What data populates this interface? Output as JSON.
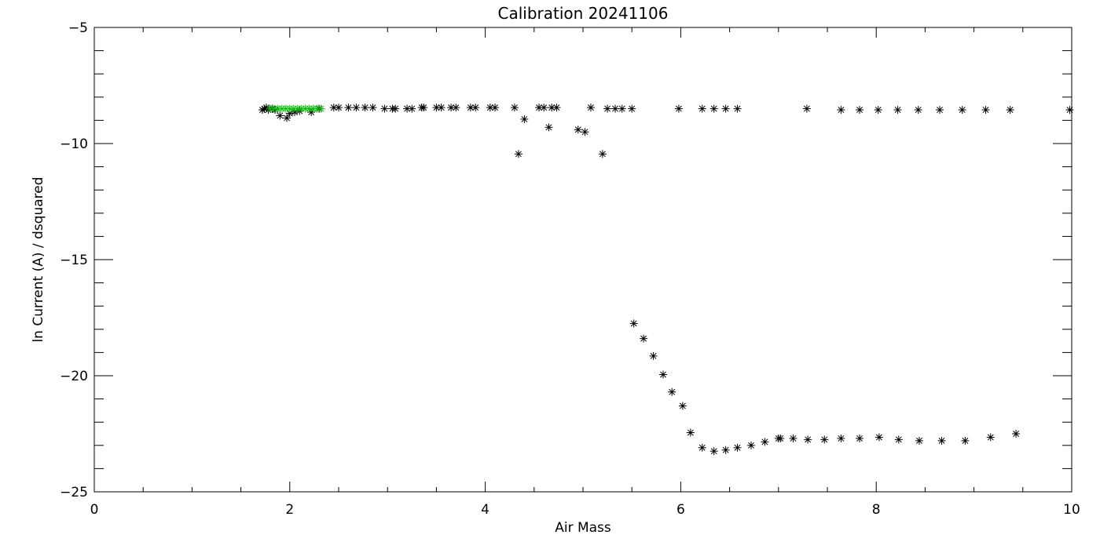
{
  "chart_data": {
    "type": "scatter",
    "title": "Calibration 20241106",
    "xlabel": "Air Mass",
    "ylabel": "ln Current (A) / dsquared",
    "xlim": [
      0,
      10
    ],
    "ylim": [
      -25,
      -5
    ],
    "x_ticks": [
      0,
      2,
      4,
      6,
      8,
      10
    ],
    "y_ticks": [
      -25,
      -20,
      -15,
      -10,
      -5
    ],
    "grid": false,
    "marker": "asterisk",
    "series": [
      {
        "color": "#000000",
        "points": [
          [
            1.72,
            -8.55
          ],
          [
            1.74,
            -8.5
          ],
          [
            1.76,
            -8.45
          ],
          [
            1.78,
            -8.55
          ],
          [
            1.8,
            -8.5
          ],
          [
            1.82,
            -8.5
          ],
          [
            1.85,
            -8.55
          ],
          [
            1.9,
            -8.8
          ],
          [
            1.97,
            -8.9
          ],
          [
            2.0,
            -8.7
          ],
          [
            2.05,
            -8.65
          ],
          [
            2.1,
            -8.6
          ],
          [
            2.22,
            -8.65
          ],
          [
            2.3,
            -8.5
          ],
          [
            2.45,
            -8.45
          ],
          [
            2.5,
            -8.45
          ],
          [
            2.6,
            -8.45
          ],
          [
            2.68,
            -8.45
          ],
          [
            2.77,
            -8.45
          ],
          [
            2.85,
            -8.45
          ],
          [
            2.97,
            -8.5
          ],
          [
            3.05,
            -8.5
          ],
          [
            3.08,
            -8.5
          ],
          [
            3.2,
            -8.5
          ],
          [
            3.25,
            -8.5
          ],
          [
            3.35,
            -8.45
          ],
          [
            3.37,
            -8.45
          ],
          [
            3.5,
            -8.45
          ],
          [
            3.55,
            -8.45
          ],
          [
            3.65,
            -8.45
          ],
          [
            3.7,
            -8.45
          ],
          [
            3.85,
            -8.45
          ],
          [
            3.9,
            -8.45
          ],
          [
            4.05,
            -8.45
          ],
          [
            4.1,
            -8.45
          ],
          [
            4.3,
            -8.45
          ],
          [
            4.34,
            -10.45
          ],
          [
            4.4,
            -8.95
          ],
          [
            4.55,
            -8.45
          ],
          [
            4.6,
            -8.45
          ],
          [
            4.65,
            -9.3
          ],
          [
            4.68,
            -8.45
          ],
          [
            4.73,
            -8.45
          ],
          [
            4.95,
            -9.4
          ],
          [
            5.02,
            -9.5
          ],
          [
            5.08,
            -8.45
          ],
          [
            5.2,
            -10.45
          ],
          [
            5.25,
            -8.5
          ],
          [
            5.33,
            -8.5
          ],
          [
            5.4,
            -8.5
          ],
          [
            5.5,
            -8.5
          ],
          [
            5.52,
            -17.75
          ],
          [
            5.62,
            -18.4
          ],
          [
            5.72,
            -19.15
          ],
          [
            5.82,
            -19.95
          ],
          [
            5.91,
            -20.7
          ],
          [
            6.02,
            -21.3
          ],
          [
            5.98,
            -8.5
          ],
          [
            6.1,
            -22.45
          ],
          [
            6.22,
            -23.1
          ],
          [
            6.22,
            -8.5
          ],
          [
            6.34,
            -8.5
          ],
          [
            6.34,
            -23.25
          ],
          [
            6.46,
            -8.5
          ],
          [
            6.46,
            -23.2
          ],
          [
            6.58,
            -8.5
          ],
          [
            6.58,
            -23.1
          ],
          [
            6.72,
            -23.0
          ],
          [
            6.86,
            -22.85
          ],
          [
            7.0,
            -22.7
          ],
          [
            7.02,
            -22.7
          ],
          [
            7.15,
            -22.7
          ],
          [
            7.29,
            -8.5
          ],
          [
            7.3,
            -22.75
          ],
          [
            7.47,
            -22.75
          ],
          [
            7.64,
            -8.55
          ],
          [
            7.64,
            -22.7
          ],
          [
            7.83,
            -8.55
          ],
          [
            7.83,
            -22.7
          ],
          [
            8.02,
            -8.55
          ],
          [
            8.03,
            -22.65
          ],
          [
            8.22,
            -8.55
          ],
          [
            8.23,
            -22.75
          ],
          [
            8.43,
            -8.55
          ],
          [
            8.44,
            -22.8
          ],
          [
            8.65,
            -8.55
          ],
          [
            8.67,
            -22.8
          ],
          [
            8.88,
            -8.55
          ],
          [
            8.91,
            -22.8
          ],
          [
            9.12,
            -8.55
          ],
          [
            9.17,
            -22.65
          ],
          [
            9.37,
            -8.55
          ],
          [
            9.43,
            -22.5
          ],
          [
            9.98,
            -8.55
          ]
        ]
      },
      {
        "color": "#00c000",
        "points": [
          [
            1.8,
            -8.5
          ],
          [
            1.84,
            -8.5
          ],
          [
            1.88,
            -8.5
          ],
          [
            1.92,
            -8.5
          ],
          [
            1.96,
            -8.5
          ],
          [
            2.0,
            -8.5
          ],
          [
            2.04,
            -8.5
          ],
          [
            2.08,
            -8.5
          ],
          [
            2.12,
            -8.5
          ],
          [
            2.16,
            -8.5
          ],
          [
            2.2,
            -8.5
          ],
          [
            2.24,
            -8.5
          ],
          [
            2.28,
            -8.5
          ],
          [
            2.32,
            -8.5
          ]
        ]
      }
    ]
  }
}
